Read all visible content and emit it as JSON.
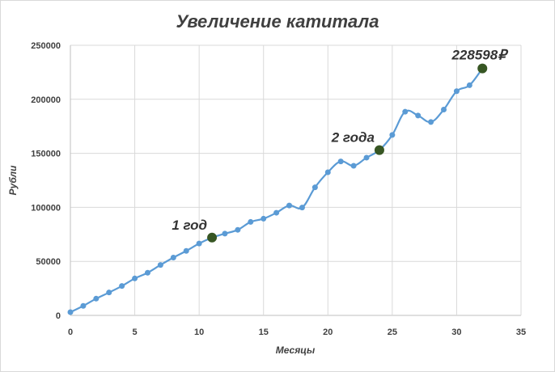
{
  "chart_data": {
    "type": "line",
    "title": "Увеличение катитала",
    "xlabel": "Месяцы",
    "ylabel": "Рубли",
    "xlim": [
      0,
      35
    ],
    "ylim": [
      0,
      250000
    ],
    "xticks": [
      0,
      5,
      10,
      15,
      20,
      25,
      30,
      35
    ],
    "yticks": [
      0,
      50000,
      100000,
      150000,
      200000,
      250000
    ],
    "grid": true,
    "legend": "none",
    "smooth": true,
    "colors": {
      "line": "#5B9BD5",
      "highlight": "#375623"
    },
    "series": [
      {
        "x": [
          0,
          1,
          2,
          3,
          4,
          5,
          6,
          7,
          8,
          9,
          10,
          11,
          12,
          13,
          14,
          15,
          16,
          17,
          18,
          19,
          20,
          21,
          22,
          23,
          24,
          25,
          26,
          27,
          28,
          29,
          30,
          31,
          32
        ],
        "values": [
          3000,
          8800,
          15500,
          21200,
          27200,
          34200,
          39500,
          46700,
          53500,
          59700,
          66500,
          72000,
          75700,
          79200,
          86500,
          89500,
          95000,
          101700,
          99800,
          118500,
          132500,
          142500,
          138500,
          146000,
          153000,
          167000,
          188500,
          185000,
          179000,
          190500,
          207500,
          213000,
          228598
        ]
      }
    ],
    "annotations": [
      {
        "x": 11,
        "text": "1 год"
      },
      {
        "x": 24,
        "text": "2 года"
      },
      {
        "x": 32,
        "text": "228598₽"
      }
    ]
  }
}
